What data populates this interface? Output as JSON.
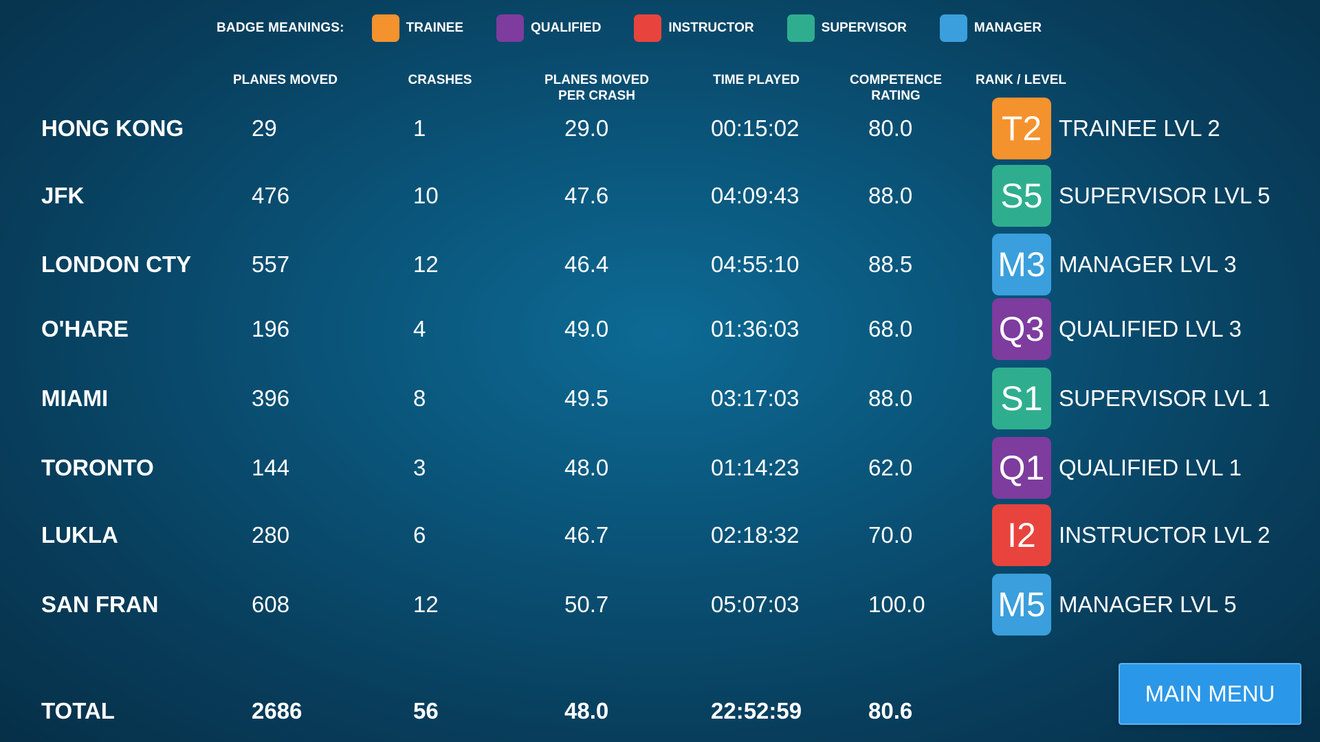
{
  "legend": {
    "title": "BADGE MEANINGS:",
    "items": [
      {
        "label": "TRAINEE",
        "color": "#f4922e"
      },
      {
        "label": "QUALIFIED",
        "color": "#7d3c9e"
      },
      {
        "label": "INSTRUCTOR",
        "color": "#e8443d"
      },
      {
        "label": "SUPERVISOR",
        "color": "#2fae8f"
      },
      {
        "label": "MANAGER",
        "color": "#3a9fdc"
      }
    ]
  },
  "columns": {
    "planes_moved": "PLANES MOVED",
    "crashes": "CRASHES",
    "per_crash": "PLANES MOVED\nPER CRASH",
    "time_played": "TIME PLAYED",
    "competence": "COMPETENCE\nRATING",
    "rank": "RANK / LEVEL"
  },
  "rows": [
    {
      "airport": "HONG KONG",
      "planes_moved": "29",
      "crashes": "1",
      "per_crash": "29.0",
      "time_played": "00:15:02",
      "competence": "80.0",
      "badge": "T2",
      "badge_color": "#f4922e",
      "rank": "TRAINEE LVL 2"
    },
    {
      "airport": "JFK",
      "planes_moved": "476",
      "crashes": "10",
      "per_crash": "47.6",
      "time_played": "04:09:43",
      "competence": "88.0",
      "badge": "S5",
      "badge_color": "#2fae8f",
      "rank": "SUPERVISOR LVL 5"
    },
    {
      "airport": "LONDON CTY",
      "planes_moved": "557",
      "crashes": "12",
      "per_crash": "46.4",
      "time_played": "04:55:10",
      "competence": "88.5",
      "badge": "M3",
      "badge_color": "#3a9fdc",
      "rank": "MANAGER LVL 3"
    },
    {
      "airport": "O'HARE",
      "planes_moved": "196",
      "crashes": "4",
      "per_crash": "49.0",
      "time_played": "01:36:03",
      "competence": "68.0",
      "badge": "Q3",
      "badge_color": "#7d3c9e",
      "rank": "QUALIFIED LVL 3"
    },
    {
      "airport": "MIAMI",
      "planes_moved": "396",
      "crashes": "8",
      "per_crash": "49.5",
      "time_played": "03:17:03",
      "competence": "88.0",
      "badge": "S1",
      "badge_color": "#2fae8f",
      "rank": "SUPERVISOR LVL 1"
    },
    {
      "airport": "TORONTO",
      "planes_moved": "144",
      "crashes": "3",
      "per_crash": "48.0",
      "time_played": "01:14:23",
      "competence": "62.0",
      "badge": "Q1",
      "badge_color": "#7d3c9e",
      "rank": "QUALIFIED LVL 1"
    },
    {
      "airport": "LUKLA",
      "planes_moved": "280",
      "crashes": "6",
      "per_crash": "46.7",
      "time_played": "02:18:32",
      "competence": "70.0",
      "badge": "I2",
      "badge_color": "#e8443d",
      "rank": "INSTRUCTOR LVL 2"
    },
    {
      "airport": "SAN FRAN",
      "planes_moved": "608",
      "crashes": "12",
      "per_crash": "50.7",
      "time_played": "05:07:03",
      "competence": "100.0",
      "badge": "M5",
      "badge_color": "#3a9fdc",
      "rank": "MANAGER LVL 5"
    }
  ],
  "total": {
    "label": "TOTAL",
    "planes_moved": "2686",
    "crashes": "56",
    "per_crash": "48.0",
    "time_played": "22:52:59",
    "competence": "80.6"
  },
  "main_menu_label": "MAIN MENU"
}
